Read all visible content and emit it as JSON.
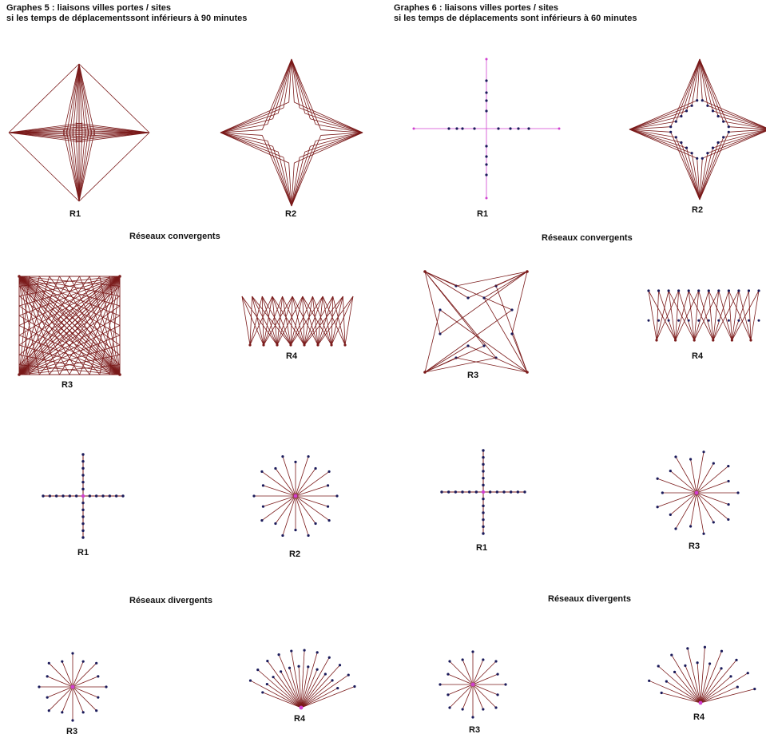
{
  "left_panel": {
    "title_line1": "Graphes 5 : liaisons villes portes / sites",
    "title_line2": "si les temps de déplacementssont inférieurs à 90 minutes",
    "convergent_caption": "Réseaux convergents",
    "divergent_caption": "Réseaux divergents",
    "labels": [
      "R1",
      "R2",
      "R3",
      "R4",
      "R1",
      "R2",
      "R3",
      "R4"
    ]
  },
  "right_panel": {
    "title_line1": "Graphes 6 : liaisons villes portes / sites",
    "title_line2": "si les temps de déplacements sont inférieurs à 60 minutes",
    "convergent_caption": "Réseaux convergents",
    "divergent_caption": "Réseaux divergents",
    "labels": [
      "R1",
      "R2",
      "R3",
      "R4",
      "R1",
      "R3",
      "R3",
      "R4"
    ]
  },
  "colors": {
    "edge": "#7a1a1a",
    "node": "#1a1a5a",
    "hub": "#d040d0",
    "text": "#111111"
  }
}
